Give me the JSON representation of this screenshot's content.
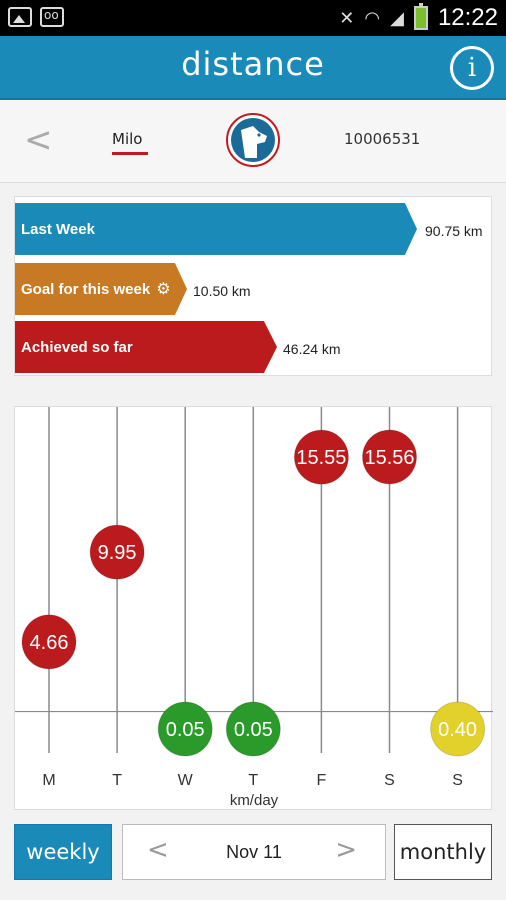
{
  "status_bar": {
    "time": "12:22",
    "battery_color": "#7bbf2b"
  },
  "header": {
    "title": "distance",
    "info_icon": "info-icon"
  },
  "pet": {
    "name": "Milo",
    "id": "10006531"
  },
  "summary": {
    "last_week_label": "Last Week",
    "last_week_value": "90.75 km",
    "goal_label": "Goal for this week",
    "goal_value": "10.50 km",
    "achieved_label": "Achieved so far",
    "achieved_value": "46.24 km"
  },
  "chart_data": {
    "type": "scatter",
    "categories": [
      "M",
      "T",
      "W",
      "T",
      "F",
      "S",
      "S"
    ],
    "values": [
      4.66,
      9.95,
      0.05,
      0.05,
      15.55,
      15.56,
      0.4
    ],
    "labels": [
      "4.66",
      "9.95",
      "0.05",
      "0.05",
      "15.55",
      "15.56",
      "0.40"
    ],
    "point_colors": [
      "#bb1b1d",
      "#bb1b1d",
      "#2a9a2a",
      "#2a9a2a",
      "#bb1b1d",
      "#bb1b1d",
      "#e2d12a"
    ],
    "xlabel": "km/day",
    "ylabel": "",
    "goal_line": 1.5,
    "ylim": [
      0,
      16.5
    ],
    "grid": true
  },
  "nav": {
    "weekly_label": "weekly",
    "date_label": "Nov 11",
    "monthly_label": "monthly"
  },
  "colors": {
    "accent": "#1a8ab9",
    "red": "#bb1b1d",
    "orange": "#c77a23",
    "green": "#2a9a2a",
    "yellow": "#e2d12a"
  }
}
